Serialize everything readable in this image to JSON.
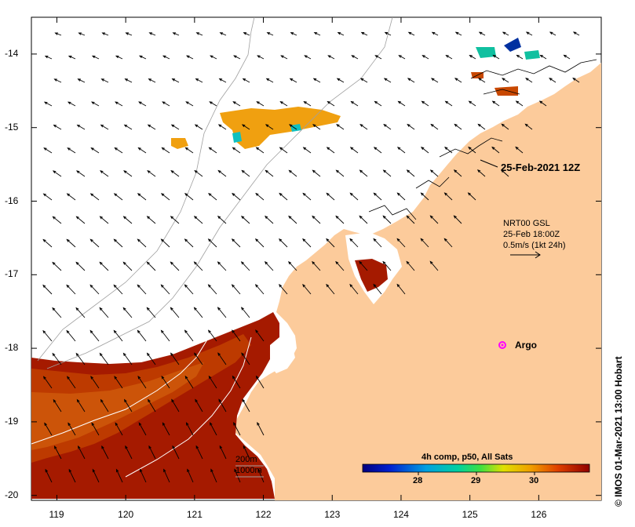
{
  "map": {
    "date_label": "25-Feb-2021 12Z",
    "current_info": {
      "line1": "NRT00 GSL",
      "line2": "25-Feb 18:00Z",
      "line3": "0.5m/s (1kt 24h)"
    },
    "argo_label": "Argo",
    "depth_labels": [
      "200m",
      "1000m"
    ],
    "credit": "© IMOS 01-Mar-2021 13:00 Hobart",
    "x_ticks": [
      {
        "value": 119,
        "label": "119"
      },
      {
        "value": 120,
        "label": "120"
      },
      {
        "value": 121,
        "label": "121"
      },
      {
        "value": 122,
        "label": "122"
      },
      {
        "value": 123,
        "label": "123"
      },
      {
        "value": 124,
        "label": "124"
      },
      {
        "value": 125,
        "label": "125"
      },
      {
        "value": 126,
        "label": "126"
      }
    ],
    "y_ticks": [
      {
        "value": -14,
        "label": "-14"
      },
      {
        "value": -15,
        "label": "-15"
      },
      {
        "value": -16,
        "label": "-16"
      },
      {
        "value": -17,
        "label": "-17"
      },
      {
        "value": -18,
        "label": "-18"
      },
      {
        "value": -19,
        "label": "-19"
      },
      {
        "value": -20,
        "label": "-20"
      }
    ],
    "colorbar": {
      "title": "4h comp, p50, All Sats",
      "ticks": [
        "28",
        "29",
        "30"
      ]
    },
    "colors": {
      "land": "#fccb9b",
      "sst_hot": "#a51a00",
      "sst_warm": "#c84800",
      "argo": "#ff00ff"
    }
  }
}
